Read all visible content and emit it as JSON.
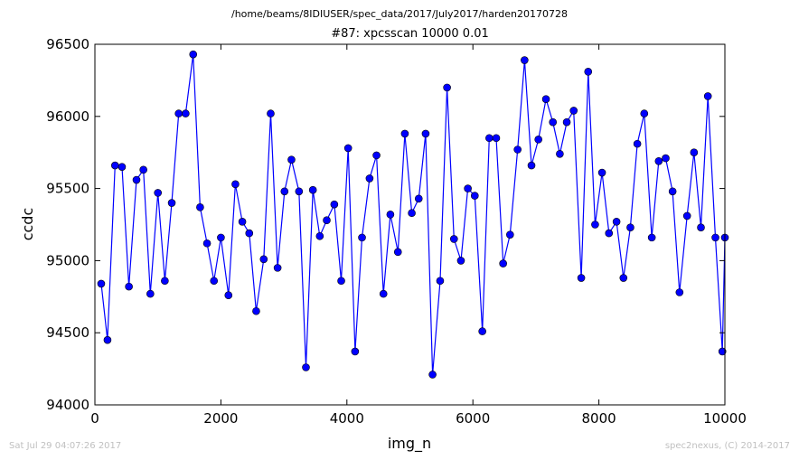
{
  "suptitle": "/home/beams/8IDIUSER/spec_data/2017/July2017/harden20170728",
  "footer": {
    "left": "Sat Jul 29 04:07:26 2017",
    "right": "spec2nexus, (C) 2014-2017"
  },
  "chart_data": {
    "type": "line",
    "title": "#87: xpcsscan 10000 0.01",
    "xlabel": "img_n",
    "ylabel": "ccdc",
    "xlim": [
      0,
      10000
    ],
    "ylim": [
      94000,
      96500
    ],
    "xticks": [
      0,
      2000,
      4000,
      6000,
      8000,
      10000
    ],
    "yticks": [
      94000,
      94500,
      95000,
      95500,
      96000,
      96500
    ],
    "grid": false,
    "line_color": "#0000ff",
    "marker_color": "#0000ff",
    "series": [
      {
        "x": [
          100,
          200,
          320,
          430,
          540,
          660,
          770,
          880,
          1000,
          1110,
          1220,
          1330,
          1440,
          1560,
          1670,
          1780,
          1890,
          2000,
          2120,
          2230,
          2340,
          2450,
          2560,
          2680,
          2790,
          2900,
          3010,
          3120,
          3240,
          3350,
          3460,
          3570,
          3680,
          3800,
          3910,
          4020,
          4130,
          4240,
          4360,
          4470,
          4580,
          4690,
          4810,
          4920,
          5030,
          5140,
          5250,
          5360,
          5480,
          5590,
          5700,
          5810,
          5920,
          6030,
          6150,
          6260,
          6370,
          6480,
          6590,
          6710,
          6820,
          6930,
          7040,
          7160,
          7270,
          7380,
          7490,
          7600,
          7720,
          7830,
          7940,
          8050,
          8160,
          8280,
          8390,
          8500,
          8610,
          8720,
          8840,
          8950,
          9060,
          9170,
          9280,
          9400,
          9510,
          9620,
          9730,
          9850,
          9960,
          10000
        ],
        "y": [
          94840,
          94450,
          95660,
          95650,
          94820,
          95560,
          95630,
          94770,
          95470,
          94860,
          95400,
          96020,
          96020,
          96430,
          95370,
          95120,
          94860,
          95160,
          94760,
          95530,
          95270,
          95190,
          94650,
          95010,
          96020,
          94950,
          95480,
          95700,
          95480,
          94260,
          95490,
          95170,
          95280,
          95390,
          94860,
          95780,
          94370,
          95160,
          95570,
          95730,
          94770,
          95320,
          95060,
          95880,
          95330,
          95430,
          95880,
          94210,
          94860,
          96200,
          95150,
          95000,
          95500,
          95450,
          94510,
          95850,
          95850,
          94980,
          95180,
          95770,
          96390,
          95660,
          95840,
          96120,
          95960,
          95740,
          95960,
          96040,
          94880,
          96310,
          95250,
          95610,
          95190,
          95270,
          94880,
          95230,
          95810,
          96020,
          95160,
          95690,
          95710,
          95480,
          94780,
          95310,
          95750,
          95230,
          96140,
          95160,
          94370,
          95160
        ]
      }
    ]
  }
}
